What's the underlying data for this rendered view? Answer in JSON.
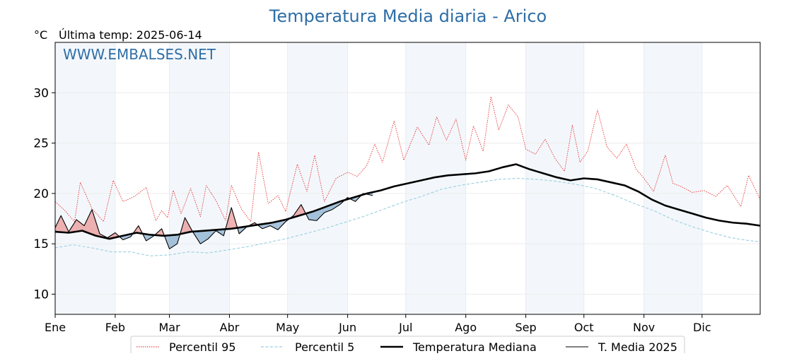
{
  "chart_data": {
    "type": "line",
    "title": "Temperatura Media diaria - Arico",
    "unit_label": "°C",
    "last_temp_label": "Última temp: 2025-06-14",
    "watermark": "WWW.EMBALSES.NET",
    "ylim": [
      8,
      35
    ],
    "y_ticks": [
      10,
      15,
      20,
      25,
      30
    ],
    "months": [
      "Ene",
      "Feb",
      "Mar",
      "Abr",
      "May",
      "Jun",
      "Jul",
      "Ago",
      "Sep",
      "Oct",
      "Nov",
      "Dic"
    ],
    "month_start_days": [
      1,
      32,
      60,
      91,
      121,
      152,
      182,
      213,
      244,
      274,
      305,
      335
    ],
    "grid": true,
    "legend_position": "bottom-center",
    "series": [
      {
        "name": "Percentil 95",
        "color": "#e41a1c",
        "style": "dotted",
        "days": [
          1,
          6,
          11,
          14,
          20,
          26,
          31,
          36,
          42,
          48,
          53,
          56,
          59,
          62,
          66,
          71,
          76,
          79,
          84,
          89,
          92,
          97,
          102,
          106,
          111,
          116,
          120,
          126,
          131,
          135,
          140,
          146,
          152,
          157,
          162,
          166,
          170,
          176,
          181,
          188,
          194,
          198,
          203,
          208,
          213,
          217,
          222,
          226,
          230,
          235,
          240,
          244,
          249,
          254,
          259,
          264,
          268,
          272,
          276,
          281,
          286,
          291,
          296,
          301,
          305,
          310,
          316,
          320,
          324,
          330,
          336,
          342,
          348,
          355,
          359,
          365
        ],
        "values": [
          19.2,
          18.3,
          17.2,
          21.1,
          18.5,
          17.2,
          21.3,
          19.2,
          19.7,
          20.6,
          17.3,
          18.3,
          17.6,
          20.3,
          18.0,
          20.5,
          17.7,
          20.8,
          19.3,
          17.3,
          20.8,
          18.5,
          17.2,
          24.1,
          19.0,
          19.8,
          18.2,
          22.9,
          20.2,
          23.8,
          19.2,
          21.5,
          22.1,
          21.7,
          22.8,
          24.9,
          23.1,
          27.2,
          23.3,
          26.6,
          24.8,
          27.6,
          25.3,
          27.4,
          23.3,
          26.7,
          24.2,
          29.6,
          26.3,
          28.8,
          27.6,
          24.4,
          23.9,
          25.4,
          23.5,
          22.2,
          26.8,
          23.1,
          24.2,
          28.3,
          24.6,
          23.5,
          24.9,
          22.4,
          21.5,
          20.2,
          23.8,
          21.0,
          20.7,
          20.1,
          20.3,
          19.7,
          20.8,
          18.7,
          21.8,
          19.4
        ]
      },
      {
        "name": "Percentil 5",
        "color": "#99cfe0",
        "style": "dashed",
        "days": [
          1,
          10,
          20,
          30,
          40,
          50,
          60,
          70,
          80,
          90,
          100,
          110,
          120,
          130,
          140,
          150,
          160,
          170,
          180,
          190,
          200,
          210,
          220,
          230,
          240,
          250,
          260,
          270,
          280,
          290,
          300,
          310,
          320,
          330,
          340,
          350,
          360,
          365
        ],
        "values": [
          14.6,
          14.9,
          14.6,
          14.2,
          14.2,
          13.8,
          13.9,
          14.2,
          14.1,
          14.4,
          14.7,
          15.1,
          15.5,
          16.0,
          16.5,
          17.1,
          17.7,
          18.4,
          19.1,
          19.7,
          20.4,
          20.8,
          21.1,
          21.4,
          21.5,
          21.4,
          21.2,
          20.9,
          20.5,
          19.8,
          19.0,
          18.3,
          17.4,
          16.7,
          16.1,
          15.6,
          15.3,
          15.2
        ]
      },
      {
        "name": "Temperatura Mediana",
        "color": "#000000",
        "style": "solid-bold",
        "days": [
          1,
          8,
          15,
          22,
          29,
          36,
          43,
          50,
          57,
          64,
          71,
          78,
          85,
          92,
          99,
          106,
          113,
          120,
          127,
          134,
          141,
          148,
          155,
          162,
          169,
          176,
          183,
          190,
          197,
          204,
          211,
          218,
          225,
          232,
          239,
          246,
          253,
          260,
          267,
          274,
          281,
          288,
          295,
          302,
          309,
          316,
          323,
          330,
          337,
          344,
          351,
          358,
          365
        ],
        "values": [
          16.2,
          16.1,
          16.3,
          15.8,
          15.5,
          15.8,
          16.1,
          15.9,
          15.8,
          15.9,
          16.2,
          16.3,
          16.4,
          16.5,
          16.7,
          16.9,
          17.1,
          17.4,
          17.8,
          18.2,
          18.7,
          19.2,
          19.6,
          20.0,
          20.3,
          20.7,
          21.0,
          21.3,
          21.6,
          21.8,
          21.9,
          22.0,
          22.2,
          22.6,
          22.9,
          22.4,
          22.0,
          21.6,
          21.3,
          21.5,
          21.4,
          21.1,
          20.8,
          20.2,
          19.4,
          18.8,
          18.4,
          18.0,
          17.6,
          17.3,
          17.1,
          17.0,
          16.8
        ]
      },
      {
        "name": "T. Media 2025",
        "color": "#000000",
        "style": "solid-thin",
        "days": [
          1,
          4,
          8,
          12,
          16,
          20,
          24,
          28,
          32,
          36,
          40,
          44,
          48,
          52,
          56,
          60,
          64,
          68,
          72,
          76,
          80,
          84,
          88,
          92,
          96,
          100,
          104,
          108,
          112,
          116,
          120,
          124,
          128,
          132,
          136,
          140,
          144,
          148,
          152,
          156,
          160,
          165
        ],
        "values": [
          16.6,
          17.8,
          16.2,
          17.4,
          16.8,
          18.4,
          16.0,
          15.6,
          16.1,
          15.4,
          15.7,
          16.8,
          15.3,
          15.8,
          16.5,
          14.5,
          15.0,
          17.6,
          16.2,
          15.0,
          15.5,
          16.3,
          15.8,
          18.6,
          16.0,
          16.7,
          17.1,
          16.5,
          16.8,
          16.4,
          17.2,
          17.8,
          18.9,
          17.4,
          17.3,
          18.1,
          18.4,
          18.9,
          19.6,
          19.2,
          20.0,
          19.8
        ]
      }
    ]
  }
}
